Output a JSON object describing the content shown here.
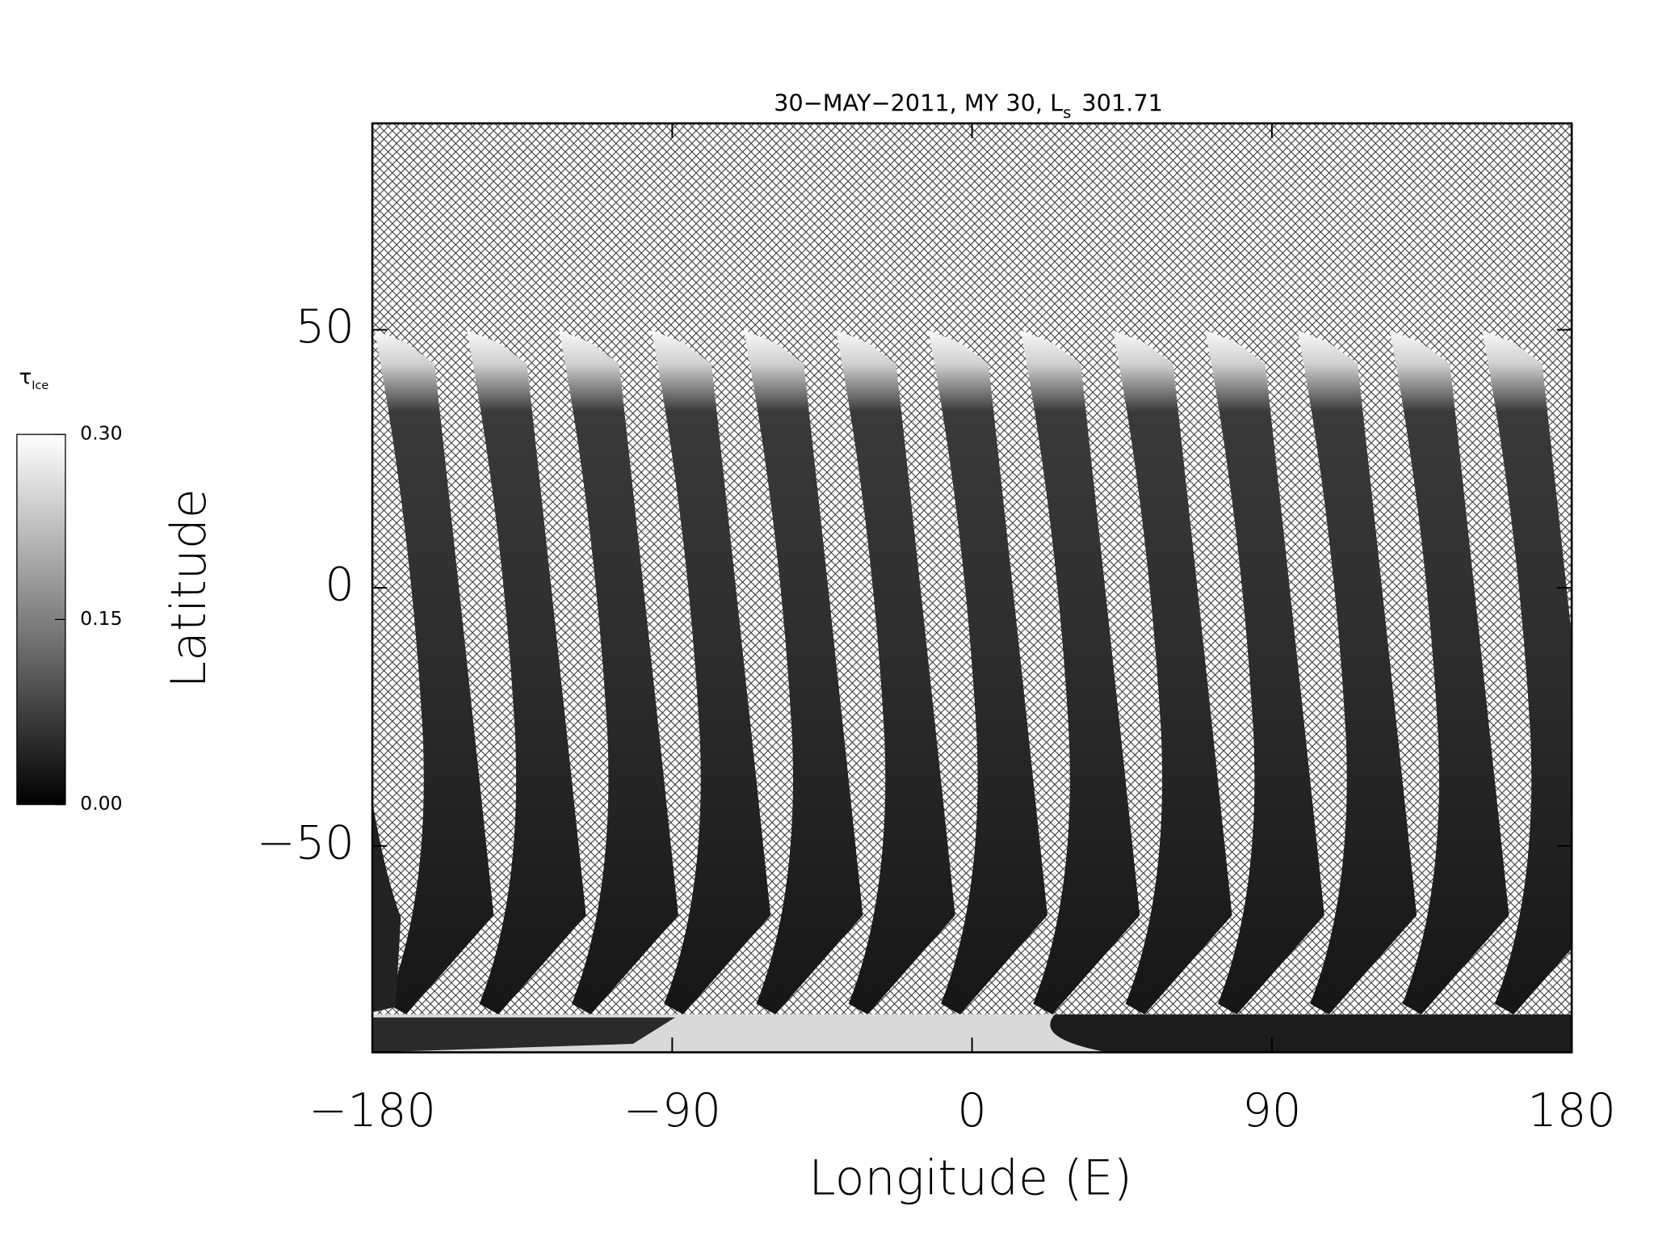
{
  "chart_data": {
    "type": "map",
    "title": "30−MAY−2011, MY 30,  L",
    "title_subscript": "s",
    "title_value": "301.71",
    "x_label": "Longitude (E)",
    "y_label": "Latitude",
    "xlim": [
      -180,
      180
    ],
    "ylim": [
      -90,
      90
    ],
    "xticks": [
      {
        "value": -180,
        "label": "−180"
      },
      {
        "value": -90,
        "label": "−90"
      },
      0,
      90,
      180
    ],
    "yticks": [
      {
        "value": -50,
        "label": "−50"
      },
      0,
      50
    ],
    "colorbar": {
      "label": "τ",
      "label_subscript": "Ice",
      "lim": [
        0,
        0.3
      ],
      "ticks": [
        {
          "value": 0,
          "label": "0.00"
        },
        {
          "value": 0.15,
          "label": "0.15"
        },
        {
          "value": 0.3,
          "label": "0.30"
        }
      ],
      "colors": [
        "#000000",
        "#ffffff"
      ]
    }
  }
}
